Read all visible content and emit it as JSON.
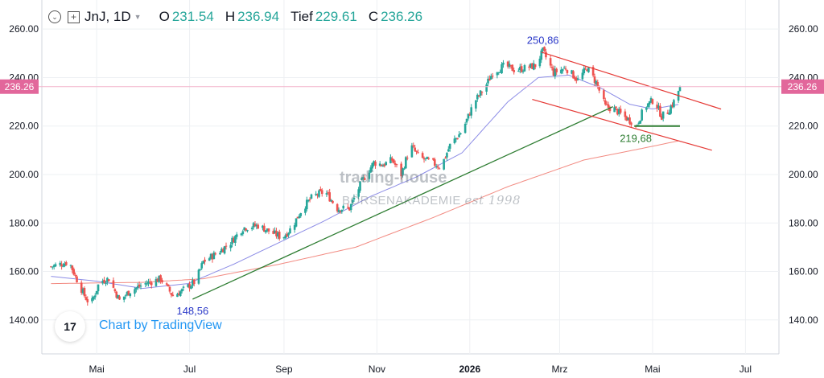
{
  "header": {
    "symbol": "JnJ",
    "interval": ", 1D",
    "open_label": "O",
    "open": "231.54",
    "high_label": "H",
    "high": "236.94",
    "low_label": "Tief",
    "low": "229.61",
    "close_label": "C",
    "close": "236.26"
  },
  "branding": {
    "tradingview": "Chart by TradingView",
    "tv_logo": "17"
  },
  "watermark": {
    "line1": "trading-house",
    "line2": "BÖRSENAKADEMIE",
    "line3": "est 1998"
  },
  "colors": {
    "up": "#26a69a",
    "down": "#ef5350",
    "sma_short": "#8c8ce6",
    "sma_long": "#f28b82",
    "trendline": "#2e7d32",
    "channel": "#e53935",
    "price_label_bg": "#e2679b"
  },
  "chart_data": {
    "type": "candlestick",
    "ylim": [
      126,
      272
    ],
    "yticks": [
      140,
      160,
      180,
      200,
      220,
      240,
      260
    ],
    "ytick_labels": [
      "140.00",
      "160.00",
      "180.00",
      "200.00",
      "220.00",
      "240.00",
      "260.00"
    ],
    "xticks": [
      {
        "label": "Mai",
        "day": 30,
        "bold": false
      },
      {
        "label": "Jul",
        "day": 91,
        "bold": false
      },
      {
        "label": "Sep",
        "day": 153,
        "bold": false
      },
      {
        "label": "Nov",
        "day": 214,
        "bold": false
      },
      {
        "label": "2026",
        "day": 275,
        "bold": true
      },
      {
        "label": "Mrz",
        "day": 334,
        "bold": false
      },
      {
        "label": "Mai",
        "day": 395,
        "bold": false
      },
      {
        "label": "Jul",
        "day": 456,
        "bold": false
      }
    ],
    "first_date": "2025-04-01",
    "last_price": 236.26,
    "last_price_label": "236.26",
    "ohlc_anchors": [
      [
        0,
        162
      ],
      [
        12,
        164
      ],
      [
        16,
        158
      ],
      [
        22,
        150
      ],
      [
        26,
        146
      ],
      [
        32,
        156
      ],
      [
        38,
        157
      ],
      [
        45,
        148
      ],
      [
        52,
        152
      ],
      [
        62,
        155
      ],
      [
        72,
        157
      ],
      [
        80,
        150
      ],
      [
        86,
        152
      ],
      [
        95,
        156
      ],
      [
        100,
        164
      ],
      [
        110,
        168
      ],
      [
        118,
        172
      ],
      [
        126,
        178
      ],
      [
        136,
        179
      ],
      [
        145,
        176
      ],
      [
        152,
        174
      ],
      [
        158,
        178
      ],
      [
        165,
        186
      ],
      [
        172,
        191
      ],
      [
        180,
        193
      ],
      [
        188,
        186
      ],
      [
        196,
        186
      ],
      [
        204,
        197
      ],
      [
        212,
        205
      ],
      [
        218,
        204
      ],
      [
        224,
        206
      ],
      [
        230,
        200
      ],
      [
        236,
        212
      ],
      [
        242,
        207
      ],
      [
        250,
        205
      ],
      [
        256,
        203
      ],
      [
        262,
        212
      ],
      [
        270,
        218
      ],
      [
        278,
        230
      ],
      [
        285,
        236
      ],
      [
        290,
        242
      ],
      [
        298,
        245
      ],
      [
        305,
        243
      ],
      [
        312,
        244
      ],
      [
        318,
        245
      ],
      [
        323,
        250.86
      ],
      [
        330,
        242
      ],
      [
        338,
        244
      ],
      [
        346,
        239
      ],
      [
        352,
        244
      ],
      [
        358,
        238
      ],
      [
        364,
        228
      ],
      [
        370,
        227
      ],
      [
        376,
        224
      ],
      [
        381,
        222
      ],
      [
        384,
        219.68
      ],
      [
        390,
        228
      ],
      [
        396,
        231
      ],
      [
        401,
        224
      ],
      [
        405,
        226
      ],
      [
        410,
        231
      ],
      [
        413,
        236.26
      ]
    ],
    "sma_short_anchors": [
      [
        0,
        158
      ],
      [
        30,
        156
      ],
      [
        60,
        153
      ],
      [
        90,
        155
      ],
      [
        120,
        163
      ],
      [
        150,
        172
      ],
      [
        180,
        181
      ],
      [
        210,
        191
      ],
      [
        240,
        199
      ],
      [
        270,
        209
      ],
      [
        300,
        230
      ],
      [
        320,
        240
      ],
      [
        340,
        241
      ],
      [
        360,
        236
      ],
      [
        380,
        229
      ],
      [
        395,
        227
      ],
      [
        413,
        229
      ]
    ],
    "sma_long_anchors": [
      [
        0,
        155
      ],
      [
        60,
        155.5
      ],
      [
        100,
        157
      ],
      [
        150,
        163
      ],
      [
        200,
        170
      ],
      [
        250,
        182
      ],
      [
        300,
        195
      ],
      [
        350,
        206
      ],
      [
        390,
        211
      ],
      [
        413,
        214
      ]
    ],
    "trendline": {
      "from": [
        93,
        148.56
      ],
      "to": [
        369,
        228
      ]
    },
    "support_line": {
      "from": [
        383,
        220
      ],
      "to": [
        413,
        220
      ]
    },
    "channel_upper": {
      "from": [
        322,
        250.5
      ],
      "to": [
        440,
        227
      ]
    },
    "channel_lower": {
      "from": [
        316,
        231
      ],
      "to": [
        434,
        210
      ]
    },
    "annotations": [
      {
        "text": "250,86",
        "day": 323,
        "value": 250.86,
        "color": "#2a38c8",
        "pos": "above"
      },
      {
        "text": "148,56",
        "day": 93,
        "value": 148.56,
        "color": "#2a38c8",
        "pos": "below"
      },
      {
        "text": "219,68",
        "day": 384,
        "value": 219.68,
        "color": "#2e7d32",
        "pos": "below"
      }
    ]
  }
}
